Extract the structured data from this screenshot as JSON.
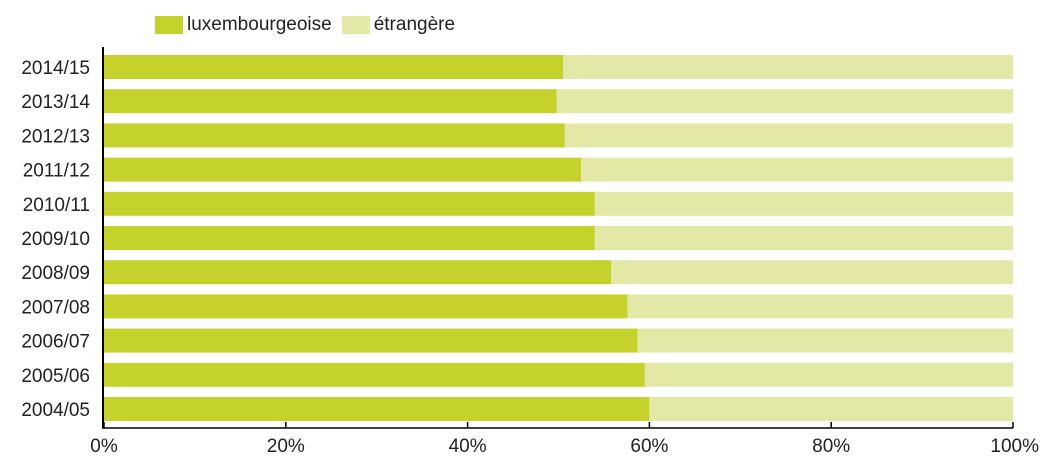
{
  "chart_data": {
    "type": "bar",
    "orientation": "horizontal",
    "stacked": true,
    "categories": [
      "2014/15",
      "2013/14",
      "2012/13",
      "2011/12",
      "2010/11",
      "2009/10",
      "2008/09",
      "2007/08",
      "2006/07",
      "2005/06",
      "2004/05"
    ],
    "series": [
      {
        "name": "luxembourgeoise",
        "color": "#c6d22c",
        "values": [
          50.5,
          49.8,
          50.7,
          52.5,
          54.0,
          54.0,
          55.8,
          57.6,
          58.7,
          59.5,
          60.0
        ]
      },
      {
        "name": "étrangère",
        "color": "#e3e8a6",
        "values": [
          49.5,
          50.2,
          49.3,
          47.5,
          46.0,
          46.0,
          44.2,
          42.4,
          41.3,
          40.5,
          40.0
        ]
      }
    ],
    "x_ticks": [
      "0%",
      "20%",
      "40%",
      "60%",
      "80%",
      "100%"
    ],
    "xlim": [
      0,
      100
    ],
    "legend_position": "top-left",
    "grid": false
  }
}
